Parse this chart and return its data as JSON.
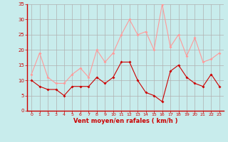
{
  "hours": [
    0,
    1,
    2,
    3,
    4,
    5,
    6,
    7,
    8,
    9,
    10,
    11,
    12,
    13,
    14,
    15,
    16,
    17,
    18,
    19,
    20,
    21,
    22,
    23
  ],
  "vent_moyen": [
    10,
    8,
    7,
    7,
    5,
    8,
    8,
    8,
    11,
    9,
    11,
    16,
    16,
    10,
    6,
    5,
    3,
    13,
    15,
    11,
    9,
    8,
    12,
    8
  ],
  "vent_rafales": [
    12,
    19,
    11,
    9,
    9,
    12,
    14,
    11,
    20,
    16,
    19,
    25,
    30,
    25,
    26,
    20,
    35,
    21,
    25,
    18,
    24,
    16,
    17,
    19
  ],
  "bg_color": "#c8ecec",
  "grid_color": "#b0b0b0",
  "line_color_moyen": "#cc0000",
  "line_color_rafales": "#ff9999",
  "xlabel": "Vent moyen/en rafales ( km/h )",
  "xlabel_color": "#cc0000",
  "tick_color": "#cc0000",
  "ylim": [
    0,
    35
  ],
  "yticks": [
    0,
    5,
    10,
    15,
    20,
    25,
    30,
    35
  ],
  "spine_color": "#cc0000"
}
